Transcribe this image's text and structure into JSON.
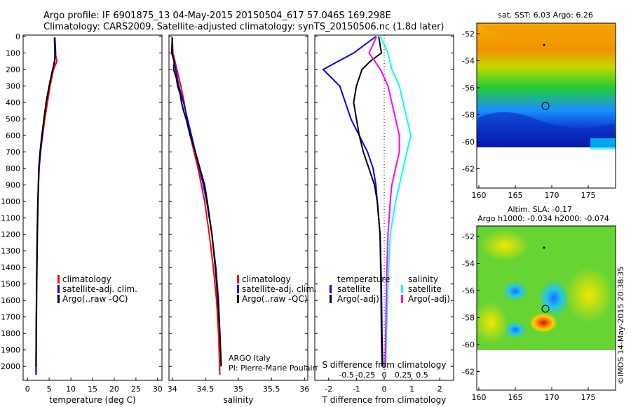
{
  "header": {
    "line1": "Argo profile: IF 6901875_13 04-May-2015 20150504_617 57.046S 169.298E",
    "line2": "Climatology: CARS2009. Satellite-adjusted climatology: synTS_20150506.nc (1.8d later)"
  },
  "colors": {
    "climatology": "#ff0000",
    "satellite": "#0000ff",
    "argo": "#000000",
    "cyan": "#00ffff",
    "magenta": "#ff00ff"
  },
  "yaxis": {
    "ticks": [
      0,
      100,
      200,
      300,
      400,
      500,
      600,
      700,
      800,
      900,
      1000,
      1100,
      1200,
      1300,
      1400,
      1500,
      1600,
      1700,
      1800,
      1900,
      2000
    ]
  },
  "panels": {
    "temperature": {
      "xlabel": "temperature (deg C)",
      "xticks": [
        "0",
        "5",
        "10",
        "15",
        "20",
        "25",
        "30"
      ],
      "legend": [
        "climatology",
        "satellite-adj. clim.",
        "Argo(..raw -QC)"
      ]
    },
    "salinity": {
      "xlabel": "salinity",
      "xticks": [
        "34",
        "34.5",
        "35",
        "35.5",
        "36"
      ],
      "legend": [
        "climatology",
        "satellite-adj. clim.",
        "Argo(..raw -QC)"
      ],
      "note1": "ARGO Italy",
      "note2": "PI: Pierre-Marie Poulain"
    },
    "difference": {
      "xlabel": "T difference from climatology",
      "xticks": [
        "-2",
        "-1",
        "0",
        "1",
        "2"
      ],
      "top_label": "S difference from climatology",
      "top_ticks": [
        "-0.5",
        "-0.25",
        "0",
        "0.25",
        "0.5"
      ],
      "legend_t_title": "temperature",
      "legend_s_title": "salinity",
      "legend_sat": "satellite",
      "legend_argo": "Argo(-adj)"
    }
  },
  "maps": {
    "sst_title": "sat. SST: 6.03  Argo: 6.26",
    "sla_title1": "Altim. SLA: -0.17",
    "sla_title2": "Argo h1000: -0.034  h2000: -0.074",
    "yticks": [
      "-52",
      "-54",
      "-56",
      "-58",
      "-60",
      "-62"
    ],
    "xticks": [
      "160",
      "165",
      "170",
      "175"
    ]
  },
  "credit": "©IMOS 14-May-2015 20:38:35",
  "chart_data": [
    {
      "type": "line",
      "panel": "temperature",
      "xlabel": "temperature (deg C)",
      "xlim": [
        -1,
        31
      ],
      "ylim": [
        2050,
        0
      ],
      "series": [
        {
          "name": "climatology",
          "depth": [
            10,
            100,
            150,
            200,
            300,
            400,
            500,
            600,
            700,
            800,
            900,
            1000,
            1200,
            1500,
            1800,
            2050
          ],
          "values": [
            6.3,
            6.4,
            6.8,
            6.0,
            5.2,
            4.6,
            4.0,
            3.5,
            3.0,
            2.7,
            2.55,
            2.45,
            2.3,
            2.15,
            2.05,
            2.0
          ]
        },
        {
          "name": "satellite-adj. clim.",
          "depth": [
            10,
            100,
            150,
            200,
            300,
            400,
            500,
            600,
            700,
            800,
            900,
            1000,
            1200,
            1500,
            1800,
            2050
          ],
          "values": [
            6.2,
            6.3,
            6.3,
            5.8,
            5.0,
            4.3,
            3.8,
            3.4,
            3.0,
            2.65,
            2.5,
            2.4,
            2.25,
            2.1,
            2.0,
            1.95
          ]
        },
        {
          "name": "Argo(..raw -QC)",
          "depth": [
            5,
            50,
            100,
            150,
            200,
            300,
            400,
            500,
            600,
            700,
            800,
            900,
            1000,
            1200,
            1500,
            1800,
            2000
          ],
          "values": [
            6.3,
            6.4,
            6.5,
            6.2,
            5.8,
            5.0,
            4.3,
            3.8,
            3.3,
            2.9,
            2.6,
            2.5,
            2.4,
            2.25,
            2.1,
            2.0,
            1.95
          ]
        }
      ]
    },
    {
      "type": "line",
      "panel": "salinity",
      "xlabel": "salinity",
      "xlim": [
        33.95,
        36.05
      ],
      "ylim": [
        2050,
        0
      ],
      "series": [
        {
          "name": "climatology",
          "depth": [
            10,
            100,
            200,
            300,
            400,
            500,
            600,
            700,
            800,
            900,
            1000,
            1200,
            1400,
            1600,
            1800,
            2050
          ],
          "values": [
            34.0,
            34.01,
            34.07,
            34.13,
            34.18,
            34.22,
            34.27,
            34.33,
            34.39,
            34.44,
            34.49,
            34.56,
            34.62,
            34.67,
            34.7,
            34.72
          ]
        },
        {
          "name": "satellite-adj. clim.",
          "depth": [
            10,
            100,
            200,
            300,
            400,
            500,
            600,
            700,
            800,
            900,
            1000,
            1200,
            1400,
            1600,
            1800,
            2000
          ],
          "values": [
            34.0,
            34.0,
            34.05,
            34.1,
            34.17,
            34.23,
            34.29,
            34.35,
            34.41,
            34.47,
            34.52,
            34.6,
            34.66,
            34.7,
            34.72,
            34.74
          ]
        },
        {
          "name": "Argo(..raw -QC)",
          "depth": [
            5,
            100,
            150,
            200,
            250,
            300,
            350,
            400,
            450,
            500,
            600,
            700,
            800,
            900,
            1000,
            1200,
            1400,
            1600,
            1800,
            2000
          ],
          "values": [
            34.0,
            33.99,
            34.03,
            34.02,
            34.06,
            34.08,
            34.12,
            34.14,
            34.17,
            34.21,
            34.27,
            34.35,
            34.42,
            34.49,
            34.53,
            34.6,
            34.65,
            34.69,
            34.72,
            34.74
          ]
        }
      ]
    },
    {
      "type": "line",
      "panel": "difference",
      "xlabel": "T difference from climatology",
      "xlim": [
        -2.5,
        2.5
      ],
      "ylim": [
        2050,
        0
      ],
      "series": [
        {
          "name": "temperature satellite",
          "depth": [
            0,
            100,
            200,
            300,
            400,
            500,
            600,
            700,
            800,
            900,
            1000,
            1200,
            1500,
            1800,
            2000
          ],
          "values": [
            -0.3,
            -1.1,
            -2.2,
            -1.6,
            -1.4,
            -1.2,
            -0.9,
            -0.6,
            -0.4,
            -0.3,
            -0.25,
            -0.15,
            -0.12,
            -0.1,
            -0.08
          ]
        },
        {
          "name": "temperature Argo(-adj)",
          "depth": [
            0,
            100,
            150,
            200,
            300,
            400,
            500,
            600,
            700,
            800,
            900,
            1000,
            1200,
            1500,
            1800,
            2000
          ],
          "values": [
            -0.2,
            -0.1,
            -0.5,
            -0.8,
            -1.0,
            -1.1,
            -1.0,
            -0.9,
            -0.75,
            -0.55,
            -0.35,
            -0.25,
            -0.15,
            -0.1,
            -0.08,
            -0.05
          ]
        },
        {
          "name": "salinity satellite",
          "depth": [
            0,
            100,
            200,
            300,
            400,
            500,
            600,
            700,
            800,
            900,
            1000,
            1200,
            1500,
            1800,
            2000
          ],
          "values": [
            -0.05,
            0.05,
            0.1,
            0.2,
            0.25,
            0.3,
            0.35,
            0.3,
            0.25,
            0.2,
            0.15,
            0.08,
            0.05,
            0.03,
            0.02
          ]
        },
        {
          "name": "salinity Argo(-adj)",
          "depth": [
            0,
            100,
            200,
            300,
            400,
            500,
            600,
            700,
            800,
            900,
            1000,
            1200,
            1500,
            1800,
            2000
          ],
          "values": [
            -0.1,
            -0.2,
            -0.05,
            0.05,
            0.1,
            0.15,
            0.2,
            0.2,
            0.15,
            0.1,
            0.08,
            0.05,
            0.03,
            0.02,
            0.01
          ]
        }
      ]
    }
  ]
}
